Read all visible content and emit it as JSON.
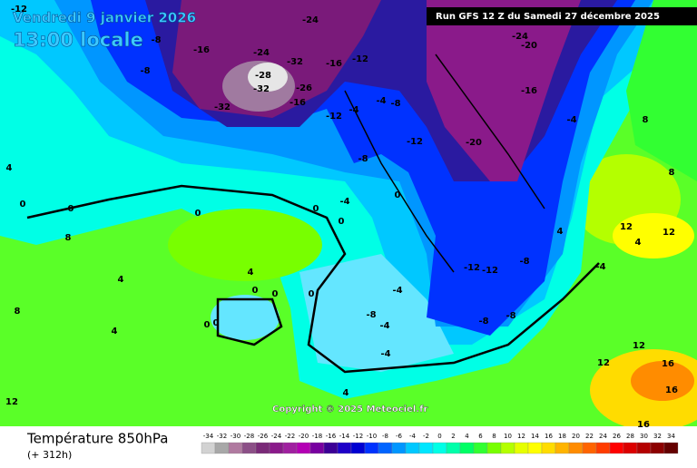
{
  "header": {
    "date": "Vendredi 9 janvier 2026",
    "time": "13:00 locale",
    "run": "Run GFS 12 Z du Samedi 27 décembre 2025"
  },
  "map": {
    "copyright": "Copyright © 2025 Meteociel.fr",
    "labels": [
      -16,
      -24,
      -28,
      -32,
      -32,
      -26,
      -32,
      -16,
      -12,
      -16,
      -12,
      -8,
      -8,
      -24,
      -24,
      -20,
      -16,
      -20,
      -12,
      -4,
      -4,
      -8,
      -8,
      -12,
      -12,
      -8,
      -8,
      -4,
      -4,
      -4,
      0,
      0,
      0,
      0,
      0,
      0,
      0,
      0,
      0,
      0,
      0,
      4,
      4,
      4,
      4,
      -8,
      -4,
      -8,
      12,
      12,
      -4,
      8,
      -4,
      16,
      16,
      16,
      12,
      12,
      8,
      8,
      12,
      -12,
      4,
      8,
      4,
      4
    ]
  },
  "footer": {
    "field": "Température 850hPa",
    "lead": "(+ 312h)",
    "scale": {
      "labels": [
        -34,
        -32,
        -30,
        -28,
        -26,
        -24,
        -22,
        -20,
        -18,
        -16,
        -14,
        -12,
        -10,
        -8,
        -6,
        -4,
        -2,
        0,
        2,
        4,
        6,
        8,
        10,
        12,
        14,
        16,
        18,
        20,
        22,
        24,
        26,
        28,
        30,
        32,
        34
      ],
      "colors": [
        "#d2d2d2",
        "#a8a8a8",
        "#b07aa0",
        "#8c4f87",
        "#7a2a78",
        "#8a1a8a",
        "#a020a0",
        "#b400b4",
        "#7800a0",
        "#3c0096",
        "#1e00c8",
        "#0000d2",
        "#0032ff",
        "#0064ff",
        "#0096ff",
        "#00c8ff",
        "#00e6ff",
        "#00ffe6",
        "#00ffaa",
        "#00ff64",
        "#32ff32",
        "#78ff00",
        "#b4ff00",
        "#e6ff00",
        "#ffff00",
        "#ffdc00",
        "#ffb400",
        "#ff8c00",
        "#ff6400",
        "#ff3c00",
        "#ff0000",
        "#dc0000",
        "#b40000",
        "#8c0000",
        "#640000"
      ]
    }
  }
}
